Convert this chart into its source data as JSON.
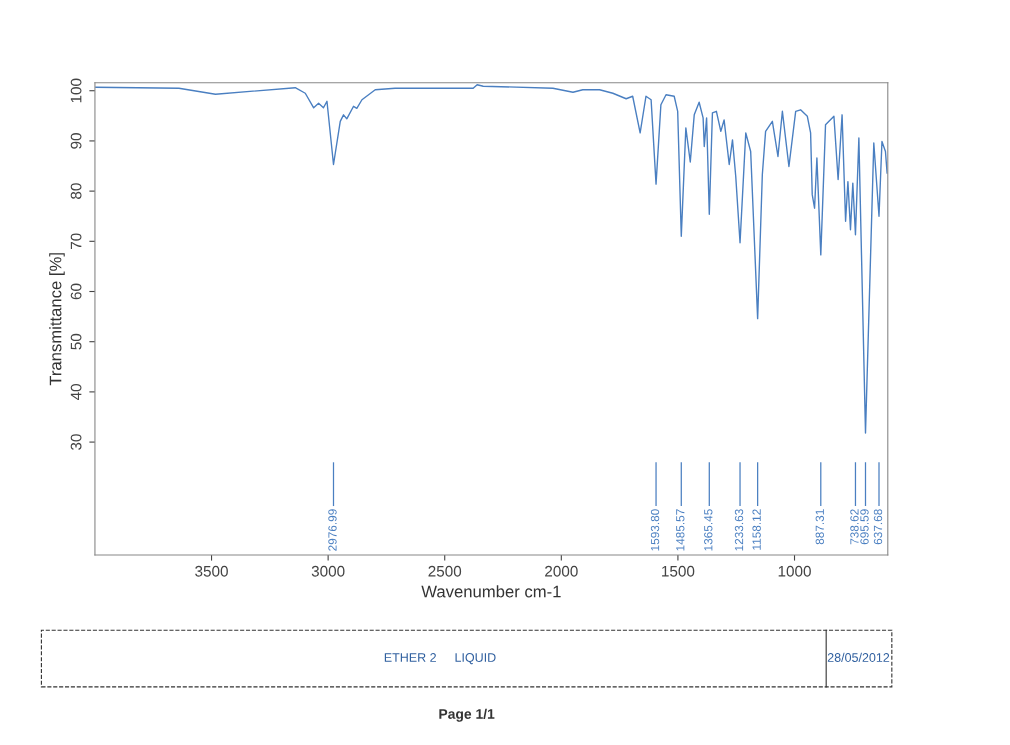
{
  "chart_data": {
    "type": "line",
    "xlabel": "Wavenumber cm-1",
    "ylabel": "Transmittance [%]",
    "xlim": [
      4000,
      600
    ],
    "xticks": [
      3500,
      3000,
      2500,
      2000,
      1500,
      1000
    ],
    "ylim": [
      7.5,
      101.6
    ],
    "yticks": [
      30,
      40,
      50,
      60,
      70,
      80,
      90,
      100
    ],
    "grid": false,
    "legend": false,
    "marker": "none",
    "line_style": "solid",
    "series": [
      {
        "color": "#4a7fc1",
        "x": [
          3996,
          3640,
          3483,
          3141,
          3098,
          3062,
          3041,
          3020,
          3005,
          2976.99,
          2948,
          2934,
          2920,
          2891,
          2877,
          2855,
          2798,
          2713,
          2378,
          2361,
          2335,
          2036,
          1950,
          1908,
          1836,
          1779,
          1722,
          1694,
          1662,
          1637,
          1615,
          1593.8,
          1573,
          1551,
          1516,
          1501,
          1485.57,
          1466,
          1447,
          1430,
          1409,
          1392,
          1387,
          1377,
          1365.45,
          1352,
          1335,
          1316,
          1302,
          1280,
          1266,
          1252,
          1233.63,
          1209,
          1188,
          1158.12,
          1138,
          1124,
          1095,
          1071,
          1052,
          1024,
          995,
          974,
          945,
          931,
          924,
          914,
          904,
          887.31,
          867,
          831,
          813,
          796,
          781,
          771,
          760,
          750,
          738.62,
          724,
          695.59,
          660,
          637.68,
          625,
          610,
          603
        ],
        "values": [
          100.7,
          100.5,
          99.3,
          100.6,
          99.5,
          96.6,
          97.5,
          96.6,
          97.9,
          85.3,
          93.9,
          95.2,
          94.4,
          96.9,
          96.5,
          98.2,
          100.2,
          100.5,
          100.5,
          101.2,
          100.9,
          100.5,
          99.7,
          100.2,
          100.2,
          99.5,
          98.4,
          98.9,
          91.6,
          98.9,
          98.2,
          81.4,
          97.2,
          99.2,
          98.9,
          95.9,
          71.0,
          92.6,
          85.8,
          95.2,
          97.7,
          94.6,
          88.9,
          94.6,
          75.4,
          95.6,
          95.9,
          91.9,
          94.2,
          85.3,
          90.2,
          82.9,
          69.7,
          91.6,
          87.9,
          54.6,
          83.3,
          91.9,
          93.9,
          86.9,
          95.9,
          84.9,
          95.9,
          96.2,
          94.9,
          91.6,
          79.3,
          76.6,
          86.6,
          67.3,
          93.2,
          94.9,
          82.3,
          95.2,
          74.0,
          81.9,
          72.3,
          81.6,
          71.3,
          90.6,
          31.8,
          89.6,
          75.0,
          89.9,
          87.9,
          83.6
        ]
      }
    ],
    "annotations": [
      {
        "text": "2976.99",
        "x": 2976.99
      },
      {
        "text": "1593.80",
        "x": 1593.8
      },
      {
        "text": "1485.57",
        "x": 1485.57
      },
      {
        "text": "1365.45",
        "x": 1365.45
      },
      {
        "text": "1233.63",
        "x": 1233.63
      },
      {
        "text": "1158.12",
        "x": 1158.12
      },
      {
        "text": "887.31",
        "x": 887.31
      },
      {
        "text": "738.62",
        "x": 738.62
      },
      {
        "text": "695.59",
        "x": 695.59
      },
      {
        "text": "637.68",
        "x": 637.68
      },
      "ETHER 2",
      "LIQUID",
      "28/05/2012",
      "Page 1/1"
    ]
  }
}
